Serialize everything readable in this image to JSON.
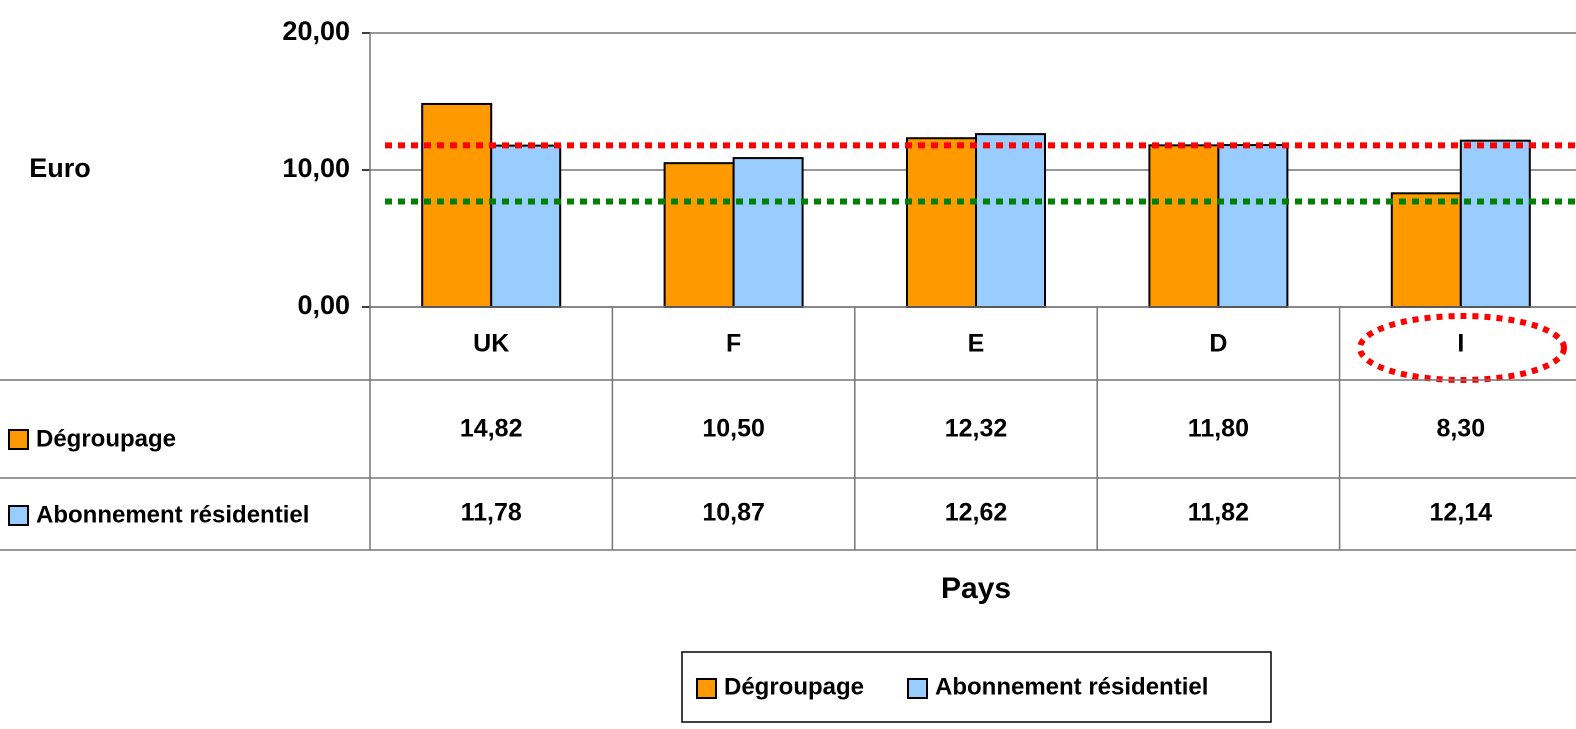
{
  "chart_data": {
    "type": "bar",
    "y_label": "Euro",
    "x_label": "Pays",
    "categories": [
      "UK",
      "F",
      "E",
      "D",
      "I"
    ],
    "series": [
      {
        "name": "Dégroupage",
        "color": "#ff9900",
        "values": [
          14.82,
          10.5,
          12.32,
          11.8,
          8.3
        ],
        "value_labels": [
          "14,82",
          "10,50",
          "12,32",
          "11,80",
          "8,30"
        ]
      },
      {
        "name": "Abonnement résidentiel",
        "color": "#99ccff",
        "values": [
          11.78,
          10.87,
          12.62,
          11.82,
          12.14
        ],
        "value_labels": [
          "11,78",
          "10,87",
          "12,62",
          "11,82",
          "12,14"
        ]
      }
    ],
    "reference_lines": [
      {
        "value": 11.8,
        "color": "#ff0000"
      },
      {
        "value": 7.7,
        "color": "#008000"
      }
    ],
    "ylim": [
      0,
      20
    ],
    "yticks": [
      {
        "value": 0,
        "label": "0,00"
      },
      {
        "value": 10,
        "label": "10,00"
      },
      {
        "value": 20,
        "label": "20,00"
      }
    ],
    "grid": true
  }
}
